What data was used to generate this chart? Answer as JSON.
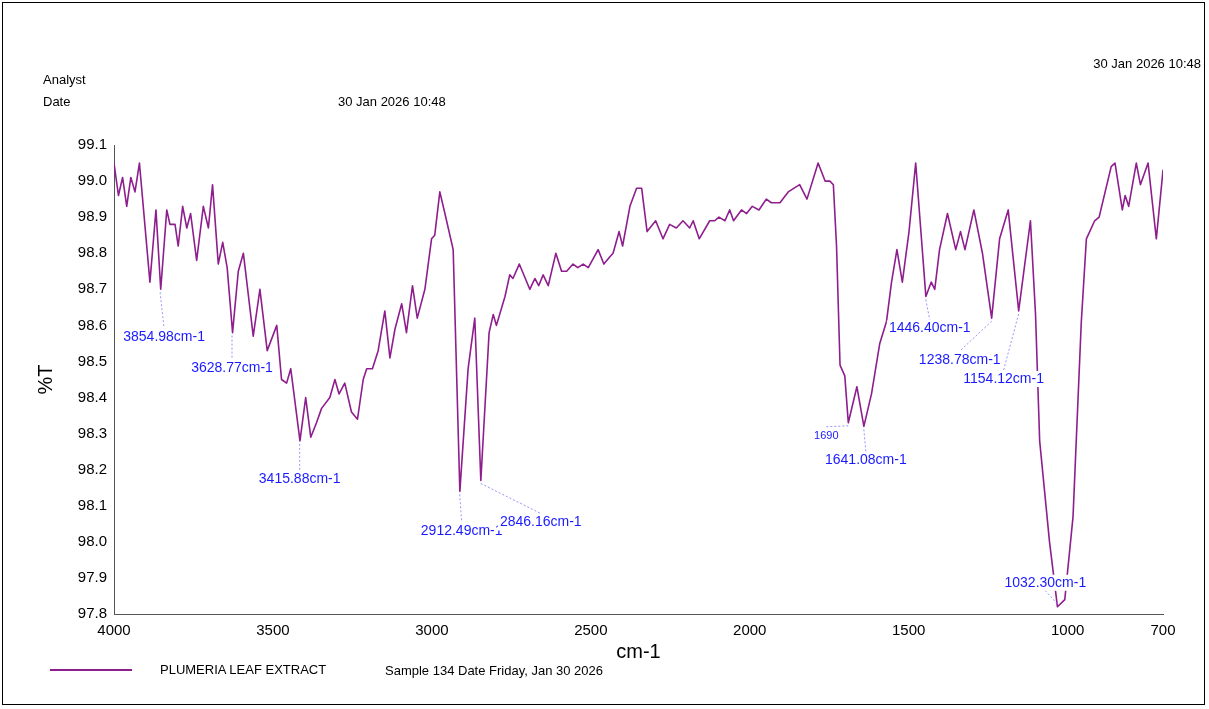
{
  "chart_data": {
    "type": "line",
    "xlabel": "cm-1",
    "ylabel": "%T",
    "xlim": [
      4000,
      700
    ],
    "xticks": [
      4000,
      3500,
      3000,
      2500,
      2000,
      1500,
      1000,
      700
    ],
    "ylim": [
      97.8,
      99.1
    ],
    "yticks": [
      97.8,
      97.9,
      {
        "value": 98,
        "label": "98.0"
      },
      98.1,
      98.2,
      98.3,
      98.4,
      98.5,
      98.6,
      98.7,
      98.8,
      98.9,
      {
        "value": 99,
        "label": "99.0"
      },
      99.1
    ],
    "grid": false,
    "legend": "bottom left",
    "marker": "none",
    "line_style": "solid",
    "series": [
      {
        "name": "PLUMERIA LEAF EXTRACT",
        "color": "#8e1e8e",
        "x": [
          4000,
          3986,
          3973,
          3960,
          3947,
          3934,
          3920,
          3887,
          3868,
          3853,
          3834,
          3824,
          3808,
          3798,
          3784,
          3771,
          3759,
          3740,
          3719,
          3703,
          3690,
          3672,
          3658,
          3644,
          3627,
          3609,
          3593,
          3562,
          3541,
          3518,
          3488,
          3473,
          3457,
          3444,
          3415,
          3397,
          3381,
          3363,
          3347,
          3321,
          3305,
          3292,
          3274,
          3253,
          3234,
          3216,
          3205,
          3187,
          3169,
          3148,
          3132,
          3116,
          3095,
          3080,
          3061,
          3046,
          3022,
          3001,
          2991,
          2975,
          2959,
          2933,
          2912,
          2886,
          2865,
          2846,
          2820,
          2807,
          2797,
          2770,
          2755,
          2745,
          2725,
          2692,
          2676,
          2664,
          2650,
          2634,
          2610,
          2592,
          2576,
          2556,
          2541,
          2524,
          2508,
          2477,
          2459,
          2440,
          2430,
          2411,
          2400,
          2377,
          2356,
          2340,
          2323,
          2296,
          2273,
          2252,
          2231,
          2210,
          2189,
          2178,
          2159,
          2126,
          2110,
          2097,
          2078,
          2063,
          2051,
          2026,
          2010,
          1992,
          1971,
          1948,
          1932,
          1905,
          1879,
          1843,
          1820,
          1785,
          1763,
          1748,
          1737,
          1727,
          1716,
          1701,
          1690,
          1663,
          1641,
          1617,
          1591,
          1570,
          1554,
          1537,
          1520,
          1499,
          1478,
          1446,
          1429,
          1418,
          1403,
          1378,
          1352,
          1337,
          1323,
          1295,
          1268,
          1239,
          1214,
          1187,
          1154,
          1117,
          1101,
          1088,
          1057,
          1032,
          1009,
          983,
          957,
          941,
          915,
          901,
          863,
          851,
          828,
          819,
          808,
          784,
          771,
          747,
          721,
          700
        ],
        "values": [
          99.05,
          98.96,
          99.01,
          98.93,
          99.01,
          98.97,
          99.05,
          98.72,
          98.92,
          98.7,
          98.92,
          98.88,
          98.88,
          98.82,
          98.93,
          98.87,
          98.91,
          98.78,
          98.93,
          98.87,
          98.99,
          98.77,
          98.83,
          98.76,
          98.58,
          98.75,
          98.8,
          98.57,
          98.7,
          98.53,
          98.6,
          98.45,
          98.44,
          98.48,
          98.28,
          98.4,
          98.29,
          98.33,
          98.37,
          98.4,
          98.45,
          98.41,
          98.44,
          98.36,
          98.34,
          98.45,
          98.48,
          98.48,
          98.53,
          98.64,
          98.51,
          98.59,
          98.66,
          98.58,
          98.71,
          98.62,
          98.7,
          98.84,
          98.85,
          98.97,
          98.91,
          98.81,
          98.14,
          98.48,
          98.62,
          98.17,
          98.58,
          98.63,
          98.6,
          98.68,
          98.74,
          98.73,
          98.77,
          98.7,
          98.73,
          98.71,
          98.74,
          98.71,
          98.8,
          98.75,
          98.75,
          98.77,
          98.76,
          98.77,
          98.76,
          98.81,
          98.77,
          98.79,
          98.8,
          98.86,
          98.82,
          98.93,
          98.98,
          98.98,
          98.86,
          98.89,
          98.84,
          98.88,
          98.87,
          98.89,
          98.87,
          98.89,
          98.84,
          98.89,
          98.89,
          98.9,
          98.89,
          98.92,
          98.89,
          98.92,
          98.91,
          98.93,
          98.92,
          98.95,
          98.94,
          98.94,
          98.97,
          98.99,
          98.95,
          99.05,
          99,
          99,
          98.99,
          98.82,
          98.49,
          98.46,
          98.33,
          98.43,
          98.32,
          98.41,
          98.55,
          98.61,
          98.72,
          98.81,
          98.72,
          98.86,
          99.05,
          98.68,
          98.72,
          98.7,
          98.81,
          98.91,
          98.81,
          98.86,
          98.81,
          98.92,
          98.8,
          98.62,
          98.84,
          98.92,
          98.64,
          98.89,
          98.63,
          98.28,
          98,
          97.82,
          97.84,
          98.07,
          98.61,
          98.84,
          98.89,
          98.9,
          99.04,
          99.05,
          98.92,
          98.96,
          98.93,
          99.05,
          98.99,
          99.05,
          98.84,
          99.03
        ]
      }
    ],
    "annotations": [
      {
        "text": "3854.98cm-1",
        "x": 3854.98,
        "y": 98.7
      },
      {
        "text": "3628.77cm-1",
        "x": 3628.77,
        "y": 98.58
      },
      {
        "text": "3415.88cm-1",
        "x": 3415.88,
        "y": 98.28
      },
      {
        "text": "2912.49cm-1",
        "x": 2912.49,
        "y": 98.14
      },
      {
        "text": "2846.16cm-1",
        "x": 2846.16,
        "y": 98.17
      },
      {
        "text": "1690",
        "x": 1690,
        "y": 98.33
      },
      {
        "text": "1641.08cm-1",
        "x": 1641.08,
        "y": 98.32
      },
      {
        "text": "1446.40cm-1",
        "x": 1446.4,
        "y": 98.68
      },
      {
        "text": "1238.78cm-1",
        "x": 1238.78,
        "y": 98.62
      },
      {
        "text": "1154.12cm-1",
        "x": 1154.12,
        "y": 98.64
      },
      {
        "text": "1032.30cm-1",
        "x": 1032.3,
        "y": 97.82
      },
      "Analyst",
      "Date",
      "30 Jan 2026 10:48",
      "30 Jan 2026 10:48",
      "Sample 134 Date Friday, Jan 30 2026"
    ]
  }
}
